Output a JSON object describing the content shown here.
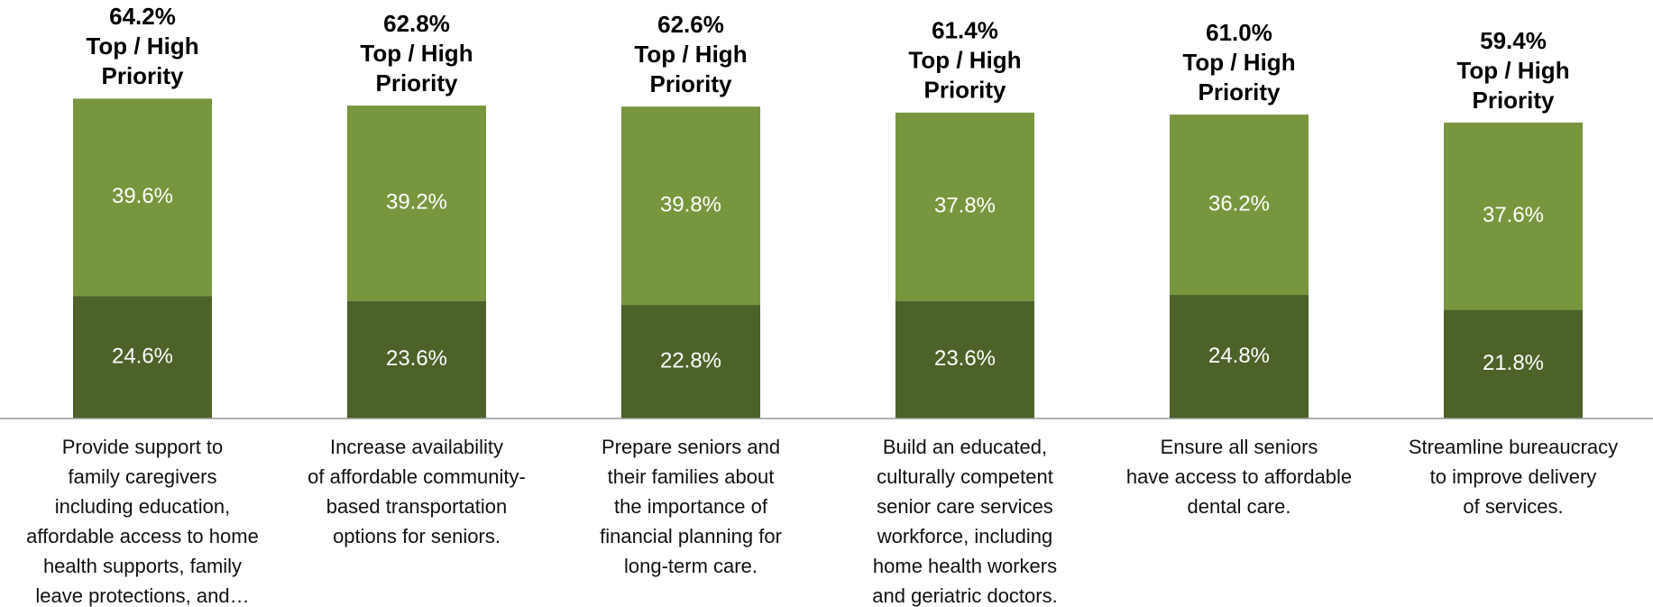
{
  "chart_data": {
    "type": "stacked_bar",
    "categories": [
      [
        "Provide support to",
        "family caregivers",
        "including education,",
        "affordable access to home",
        "health supports, family",
        "leave protections, and…"
      ],
      [
        "Increase availability",
        "of affordable community-",
        "based transportation",
        "options for seniors."
      ],
      [
        "Prepare seniors and",
        "their families about",
        "the importance of",
        "financial planning for",
        "long-term care."
      ],
      [
        "Build an educated,",
        "culturally competent",
        "senior care services",
        "workforce, including",
        "home health workers",
        "and geriatric doctors."
      ],
      [
        "Ensure all seniors",
        "have access to affordable",
        "dental care."
      ],
      [
        "Streamline bureaucracy",
        "to improve delivery",
        "of services."
      ]
    ],
    "series": [
      {
        "color": "#4d6228",
        "values": [
          24.6,
          23.6,
          22.8,
          23.6,
          24.8,
          21.8
        ],
        "value_labels": [
          "24.6%",
          "23.6%",
          "22.8%",
          "23.6%",
          "24.8%",
          "21.8%"
        ]
      },
      {
        "color": "#78963e",
        "values": [
          39.6,
          39.2,
          39.8,
          37.8,
          36.2,
          37.6
        ],
        "value_labels": [
          "39.6%",
          "39.2%",
          "39.8%",
          "37.8%",
          "36.2%",
          "37.6%"
        ]
      }
    ],
    "totals": [
      64.2,
      62.8,
      62.6,
      61.4,
      61.0,
      59.4
    ],
    "total_labels": [
      "64.2%",
      "62.8%",
      "62.6%",
      "61.4%",
      "61.0%",
      "59.4%"
    ],
    "total_caption": [
      "Top / High",
      "Priority"
    ],
    "ylim": [
      0,
      84
    ]
  }
}
